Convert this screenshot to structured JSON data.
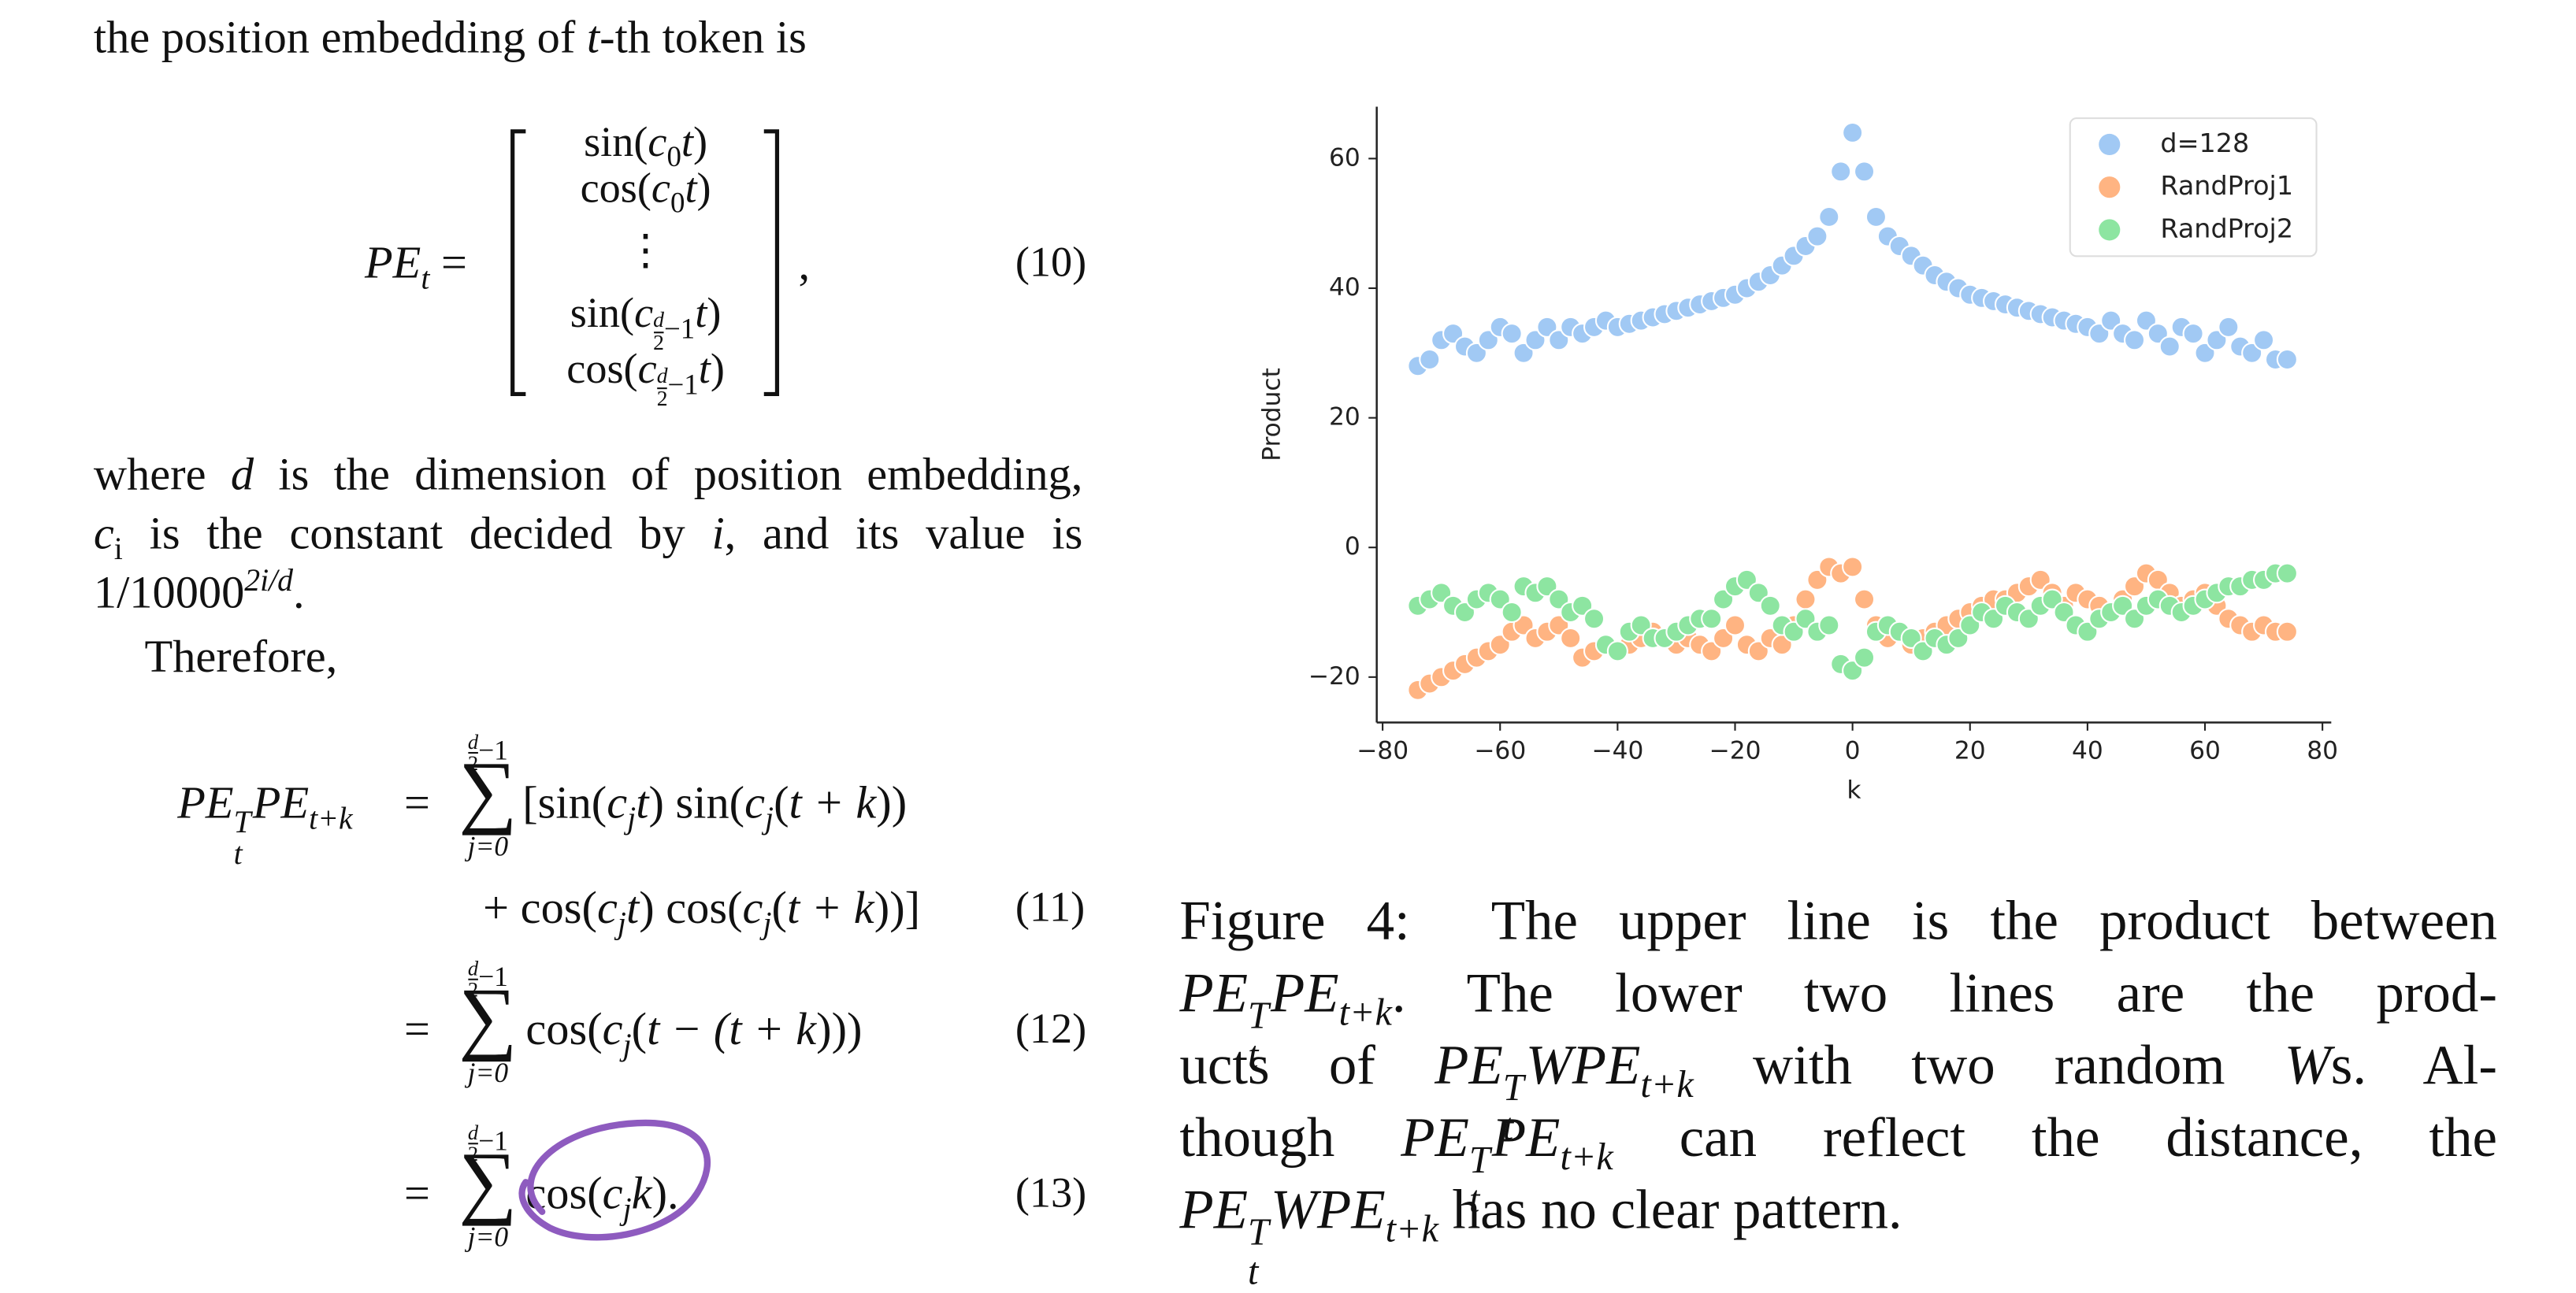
{
  "intro": [
    "the position embedding of ",
    "t",
    "-th token is"
  ],
  "eq10": {
    "lhs": "PE",
    "lhs_sub": "t",
    "equals": "=",
    "rows": [
      [
        "sin(",
        "c",
        "0",
        "t",
        ")"
      ],
      [
        "cos(",
        "c",
        "0",
        "t",
        ")"
      ],
      [
        "⋮"
      ],
      [
        "sin(",
        "c",
        "d",
        "2",
        "−1",
        "t",
        ")"
      ],
      [
        "cos(",
        "c",
        "d",
        "2",
        "−1",
        "t",
        ")"
      ]
    ],
    "comma": ",",
    "number": "(10)"
  },
  "where": [
    "where ",
    "d",
    " is the dimension of position embedding,",
    "c",
    "i",
    " is the constant decided by ",
    "i",
    ", and its value is",
    "1/10000",
    "2i/d",
    "."
  ],
  "therefore": "Therefore,",
  "eq11": {
    "lhs": [
      "PE",
      "t",
      "T",
      "PE",
      "t+k"
    ],
    "equals": "=",
    "sum": [
      "d",
      "2",
      "−1",
      "∑",
      "j=0"
    ],
    "line1": [
      "[sin(",
      "c",
      "j",
      "t",
      ") sin(",
      "c",
      "j",
      "(",
      "t + k",
      "))"
    ],
    "line2": [
      "+ cos(",
      "c",
      "j",
      "t",
      ") cos(",
      "c",
      "j",
      "(",
      "t + k",
      "))]"
    ],
    "number": "(11)"
  },
  "eq12": {
    "equals": "=",
    "sum": [
      "d",
      "2",
      "−1",
      "∑",
      "j=0"
    ],
    "body": [
      "cos(",
      "c",
      "j",
      "(",
      "t − (t + k",
      ")))"
    ],
    "number": "(12)"
  },
  "eq13": {
    "equals": "=",
    "sum": [
      "d",
      "2",
      "−1",
      "∑",
      "j=0"
    ],
    "body": [
      "cos(",
      "c",
      "j",
      "k",
      ")."
    ],
    "number": "(13)"
  },
  "caption": {
    "lines": [
      [
        "Figure 4:",
        "The upper line is the product between"
      ],
      [
        "PE",
        "t",
        "T",
        "PE",
        "t+k",
        ".",
        "The lower two lines are the prod-"
      ],
      [
        "ucts of",
        "PE",
        "t",
        "T",
        "W",
        "PE",
        "t+k",
        "with two random",
        "W",
        "s.",
        "Al-"
      ],
      [
        "though",
        "PE",
        "t",
        "T",
        "PE",
        "t+k",
        "can reflect the distance, the"
      ],
      [
        "PE",
        "t",
        "T",
        "W",
        "PE",
        "t+k",
        "has no clear pattern."
      ]
    ]
  },
  "chart_data": {
    "type": "scatter",
    "xlabel": "k",
    "ylabel": "Product",
    "x": [
      -74,
      -72,
      -70,
      -68,
      -66,
      -64,
      -62,
      -60,
      -58,
      -56,
      -54,
      -52,
      -50,
      -48,
      -46,
      -44,
      -42,
      -40,
      -38,
      -36,
      -34,
      -32,
      -30,
      -28,
      -26,
      -24,
      -22,
      -20,
      -18,
      -16,
      -14,
      -12,
      -10,
      -8,
      -6,
      -4,
      -2,
      0,
      2,
      4,
      6,
      8,
      10,
      12,
      14,
      16,
      18,
      20,
      22,
      24,
      26,
      28,
      30,
      32,
      34,
      36,
      38,
      40,
      42,
      44,
      46,
      48,
      50,
      52,
      54,
      56,
      58,
      60,
      62,
      64,
      66,
      68,
      70,
      72,
      74
    ],
    "series": [
      {
        "name": "d=128",
        "color": "#a1c9f4",
        "values": [
          28,
          29,
          32,
          33,
          31,
          30,
          32,
          34,
          33,
          30,
          32,
          34,
          32,
          34,
          33,
          34,
          35,
          34,
          34.5,
          35,
          35.5,
          36,
          36.5,
          37,
          37.5,
          38,
          38.5,
          39,
          40,
          41,
          42,
          43.5,
          45,
          46.5,
          48,
          51,
          58,
          64,
          58,
          51,
          48,
          46.5,
          45,
          43.5,
          42,
          41,
          40,
          39,
          38.5,
          38,
          37.5,
          37,
          36.5,
          36,
          35.5,
          35,
          34.5,
          34,
          33,
          35,
          33,
          32,
          35,
          33,
          31,
          34,
          33,
          30,
          32,
          34,
          31,
          30,
          32,
          29,
          29
        ]
      },
      {
        "name": "RandProj1",
        "color": "#ffb482",
        "values": [
          -22,
          -21,
          -20,
          -19,
          -18,
          -17,
          -16,
          -15,
          -13,
          -12,
          -14,
          -13,
          -12,
          -14,
          -17,
          -16,
          -15,
          -16,
          -15,
          -14,
          -13,
          -14,
          -15,
          -14,
          -15,
          -16,
          -14,
          -12,
          -15,
          -16,
          -14,
          -15,
          -12,
          -8,
          -5,
          -3,
          -4,
          -3,
          -8,
          -12,
          -14,
          -13,
          -15,
          -14,
          -13,
          -12,
          -11,
          -10,
          -9,
          -8,
          -8,
          -7,
          -6,
          -5,
          -7,
          -9,
          -7,
          -8,
          -9,
          -10,
          -8,
          -6,
          -4,
          -5,
          -7,
          -9,
          -8,
          -7,
          -9,
          -11,
          -12,
          -13,
          -12,
          -13,
          -13
        ]
      },
      {
        "name": "RandProj2",
        "color": "#8de5a1",
        "values": [
          -9,
          -8,
          -7,
          -9,
          -10,
          -8,
          -7,
          -8,
          -10,
          -6,
          -7,
          -6,
          -8,
          -10,
          -9,
          -11,
          -15,
          -16,
          -13,
          -12,
          -14,
          -14,
          -13,
          -12,
          -11,
          -11,
          -8,
          -6,
          -5,
          -7,
          -9,
          -12,
          -13,
          -11,
          -13,
          -12,
          -18,
          -19,
          -17,
          -13,
          -12,
          -13,
          -14,
          -16,
          -14,
          -15,
          -14,
          -12,
          -10,
          -11,
          -9,
          -10,
          -11,
          -9,
          -8,
          -10,
          -12,
          -13,
          -11,
          -10,
          -9,
          -11,
          -9,
          -8,
          -9,
          -10,
          -9,
          -8,
          -7,
          -6,
          -6,
          -5,
          -5,
          -4,
          -4
        ]
      }
    ],
    "xlim": [
      -81,
      81.5
    ],
    "ylim": [
      -27,
      68
    ],
    "xticks": [
      {
        "value": -80,
        "label": "−80"
      },
      {
        "value": -60,
        "label": "−60"
      },
      {
        "value": -40,
        "label": "−40"
      },
      {
        "value": -20,
        "label": "−20"
      },
      0,
      20,
      40,
      60,
      80
    ],
    "yticks": [
      {
        "value": -20,
        "label": "−20"
      },
      0,
      20,
      40,
      60
    ],
    "grid": false,
    "legend": "upper right"
  }
}
